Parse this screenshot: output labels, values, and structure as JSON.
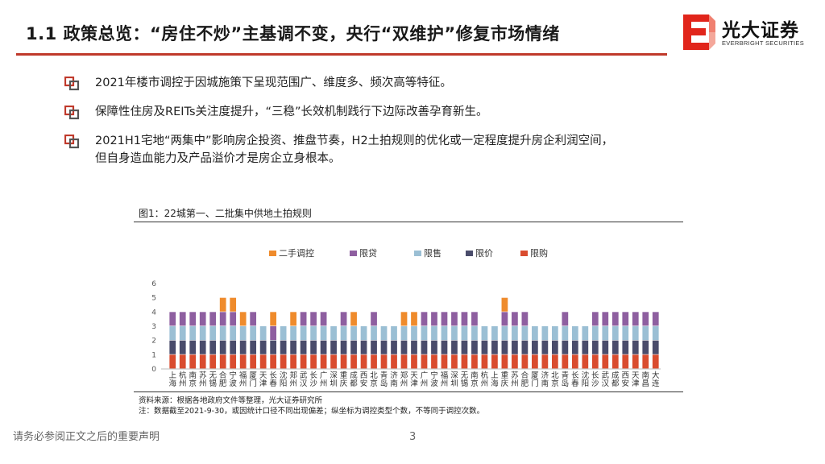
{
  "header": {
    "title": "1.1 政策总览：“房住不炒”主基调不变，央行“双维护”修复市场情绪",
    "logo_name": "光大证券",
    "logo_sub": "EVERBRIGHT SECURITIES"
  },
  "bullets": [
    {
      "text": "2021年楼市调控于因城施策下呈现范围广、维度多、频次高等特征。"
    },
    {
      "text": "保障性住房及REITs关注度提升，“三稳”长效机制践行下边际改善孕育新生。"
    },
    {
      "text": "2021H1宅地“两集中”影响房企投资、推盘节奏，H2土拍规则的优化或一定程度提升房企利润空间，",
      "text2": "但自身造血能力及产品溢价才是房企立身根本。"
    }
  ],
  "figure": {
    "caption": "图1：22城第一、二批集中供地土拍规则",
    "source": "资料来源：根据各地政府文件等整理，光大证券研究所",
    "note": "注：数据截至2021-9-30，或因统计口径不同出现偏差；纵坐标为调控类型个数，不等同于调控次数。"
  },
  "footer": {
    "disclaimer": "请务必参阅正文之后的重要声明",
    "page": "3"
  },
  "colors": {
    "accent": "#c0392b",
    "series": [
      "#ef8b2c",
      "#8e5fa0",
      "#9bbfd4",
      "#4a4c6b",
      "#d94c2f"
    ]
  },
  "chart_data": {
    "type": "bar",
    "stacked": true,
    "ylim": [
      0,
      6
    ],
    "yticks": [
      0,
      1,
      2,
      3,
      4,
      5,
      6
    ],
    "legend_position": "top",
    "categories": [
      "上海",
      "杭州",
      "南京",
      "苏州",
      "无锡",
      "合肥",
      "宁波",
      "福州",
      "厦门",
      "天津",
      "长春",
      "沈阳",
      "郑州",
      "武汉",
      "长沙",
      "广州",
      "深圳",
      "重庆",
      "成都",
      "西安",
      "北京",
      "青岛",
      "济南",
      "郑州",
      "天津",
      "广州",
      "宁波",
      "福州",
      "深圳",
      "无锡",
      "南京",
      "杭州",
      "上海",
      "重庆",
      "苏州",
      "合肥",
      "厦门",
      "济南",
      "北京",
      "青岛",
      "长春",
      "沈阳",
      "长沙",
      "武汉",
      "成都",
      "西安",
      "天津",
      "南昌",
      "大连"
    ],
    "series": [
      {
        "name": "二手调控",
        "values": [
          0,
          0,
          0,
          0,
          0,
          1,
          1,
          1,
          0,
          0,
          1,
          0,
          1,
          0,
          0,
          0,
          0,
          0,
          1,
          0,
          0,
          0,
          0,
          1,
          1,
          0,
          0,
          0,
          0,
          0,
          0,
          0,
          0,
          1,
          0,
          0,
          0,
          0,
          0,
          0,
          0,
          0,
          0,
          0,
          0,
          0,
          0,
          0,
          0
        ]
      },
      {
        "name": "限贷",
        "values": [
          1,
          1,
          1,
          1,
          1,
          1,
          1,
          0,
          1,
          0,
          1,
          0,
          0,
          1,
          1,
          1,
          0,
          1,
          0,
          0,
          1,
          0,
          0,
          0,
          0,
          1,
          1,
          1,
          1,
          1,
          1,
          0,
          0,
          1,
          1,
          1,
          0,
          0,
          0,
          1,
          0,
          0,
          1,
          1,
          1,
          1,
          1,
          1,
          1
        ]
      },
      {
        "name": "限售",
        "values": [
          1,
          1,
          1,
          1,
          1,
          1,
          1,
          1,
          1,
          1,
          0,
          1,
          1,
          1,
          1,
          1,
          1,
          1,
          1,
          1,
          1,
          1,
          1,
          1,
          1,
          1,
          1,
          1,
          1,
          1,
          1,
          1,
          1,
          1,
          1,
          1,
          1,
          1,
          1,
          1,
          1,
          1,
          1,
          1,
          1,
          1,
          1,
          1,
          1
        ]
      },
      {
        "name": "限价",
        "values": [
          1,
          1,
          1,
          1,
          1,
          1,
          1,
          1,
          1,
          1,
          1,
          1,
          1,
          1,
          1,
          1,
          1,
          1,
          1,
          1,
          1,
          1,
          1,
          1,
          1,
          1,
          1,
          1,
          1,
          1,
          1,
          1,
          1,
          1,
          1,
          1,
          1,
          1,
          1,
          1,
          1,
          1,
          1,
          1,
          1,
          1,
          1,
          1,
          1
        ]
      },
      {
        "name": "限购",
        "values": [
          1,
          1,
          1,
          1,
          1,
          1,
          1,
          1,
          1,
          1,
          1,
          1,
          1,
          1,
          1,
          1,
          1,
          1,
          1,
          1,
          1,
          1,
          1,
          1,
          1,
          1,
          1,
          1,
          1,
          1,
          1,
          1,
          1,
          1,
          1,
          1,
          1,
          1,
          1,
          1,
          1,
          1,
          1,
          1,
          1,
          1,
          1,
          1,
          1
        ]
      }
    ]
  }
}
